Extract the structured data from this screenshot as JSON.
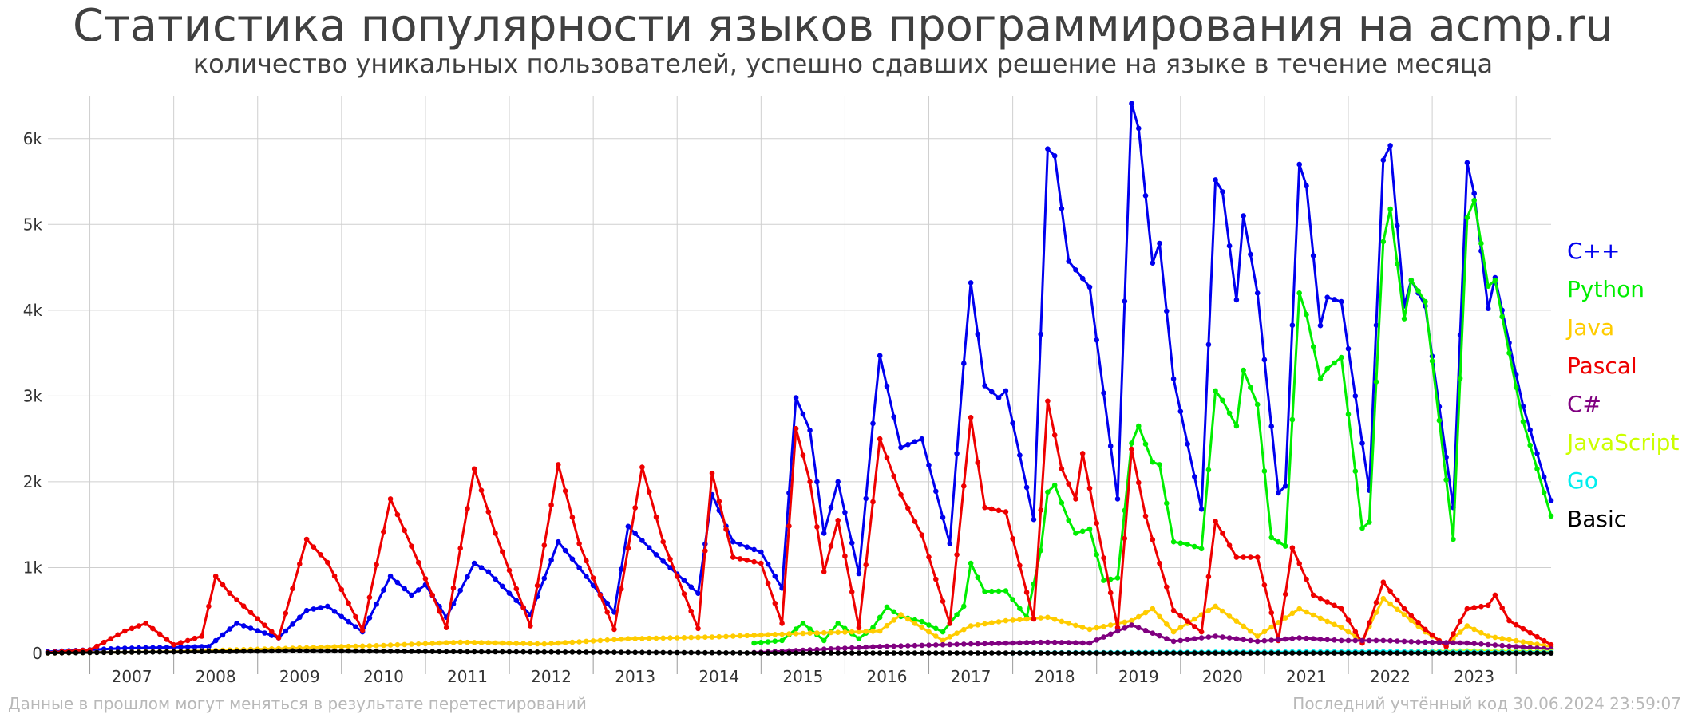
{
  "title": "Статистика популярности языков программирования на acmp.ru",
  "subtitle": "количество уникальных пользователей, успешно сдавших решение на языке в течение месяца",
  "footer_left": "Данные в прошлом могут меняться в результате перетестирований",
  "footer_right": "Последний учтённый код 30.06.2024 23:59:07",
  "chart_data": {
    "type": "line",
    "title": "Статистика популярности языков программирования на acmp.ru",
    "subtitle": "количество уникальных пользователей, успешно сдавших решение на языке в течение месяца",
    "xlabel": "",
    "ylabel": "",
    "x_range": [
      "2006-07",
      "2024-06"
    ],
    "ylim": [
      0,
      6500
    ],
    "y_ticks": [
      0,
      1000,
      2000,
      3000,
      4000,
      5000,
      6000
    ],
    "y_tick_labels": [
      "0",
      "1k",
      "2k",
      "3k",
      "4k",
      "5k",
      "6k"
    ],
    "x_tick_labels": [
      "2007",
      "2008",
      "2009",
      "2010",
      "2011",
      "2012",
      "2013",
      "2014",
      "2015",
      "2016",
      "2017",
      "2018",
      "2019",
      "2020",
      "2021",
      "2022",
      "2023"
    ],
    "grid": true,
    "legend_position": "right",
    "series": [
      {
        "name": "C++",
        "color": "#0000ee",
        "start": "2006-07",
        "anchors": [
          [
            "2006-07",
            20
          ],
          [
            "2007-06",
            60
          ],
          [
            "2008-06",
            80
          ],
          [
            "2008-10",
            350
          ],
          [
            "2009-04",
            180
          ],
          [
            "2009-08",
            500
          ],
          [
            "2009-11",
            550
          ],
          [
            "2010-04",
            250
          ],
          [
            "2010-08",
            900
          ],
          [
            "2010-11",
            680
          ],
          [
            "2011-01",
            800
          ],
          [
            "2011-04",
            420
          ],
          [
            "2011-08",
            1050
          ],
          [
            "2011-10",
            950
          ],
          [
            "2012-04",
            450
          ],
          [
            "2012-08",
            1300
          ],
          [
            "2012-11",
            1000
          ],
          [
            "2013-04",
            480
          ],
          [
            "2013-06",
            1480
          ],
          [
            "2013-10",
            1150
          ],
          [
            "2014-04",
            700
          ],
          [
            "2014-06",
            1850
          ],
          [
            "2014-09",
            1300
          ],
          [
            "2015-01",
            1180
          ],
          [
            "2015-04",
            760
          ],
          [
            "2015-06",
            2980
          ],
          [
            "2015-08",
            2600
          ],
          [
            "2015-10",
            1400
          ],
          [
            "2015-12",
            2000
          ],
          [
            "2016-03",
            930
          ],
          [
            "2016-05",
            2680
          ],
          [
            "2016-06",
            3470
          ],
          [
            "2016-09",
            2400
          ],
          [
            "2016-12",
            2500
          ],
          [
            "2017-04",
            1280
          ],
          [
            "2017-06",
            3380
          ],
          [
            "2017-07",
            4320
          ],
          [
            "2017-09",
            3120
          ],
          [
            "2017-11",
            2980
          ],
          [
            "2017-12",
            3060
          ],
          [
            "2018-04",
            1560
          ],
          [
            "2018-06",
            5880
          ],
          [
            "2018-07",
            5800
          ],
          [
            "2018-09",
            4570
          ],
          [
            "2018-10",
            4470
          ],
          [
            "2018-12",
            4270
          ],
          [
            "2019-04",
            1800
          ],
          [
            "2019-06",
            6410
          ],
          [
            "2019-07",
            6120
          ],
          [
            "2019-09",
            4550
          ],
          [
            "2019-10",
            4780
          ],
          [
            "2019-12",
            3200
          ],
          [
            "2020-04",
            1680
          ],
          [
            "2020-06",
            5520
          ],
          [
            "2020-07",
            5380
          ],
          [
            "2020-09",
            4120
          ],
          [
            "2020-10",
            5100
          ],
          [
            "2020-12",
            4200
          ],
          [
            "2021-03",
            1870
          ],
          [
            "2021-04",
            1950
          ],
          [
            "2021-06",
            5700
          ],
          [
            "2021-07",
            5450
          ],
          [
            "2021-09",
            3820
          ],
          [
            "2021-10",
            4150
          ],
          [
            "2021-12",
            4100
          ],
          [
            "2022-04",
            1900
          ],
          [
            "2022-06",
            5750
          ],
          [
            "2022-07",
            5920
          ],
          [
            "2022-09",
            4050
          ],
          [
            "2022-10",
            4350
          ],
          [
            "2022-12",
            4050
          ],
          [
            "2023-04",
            1700
          ],
          [
            "2023-06",
            5720
          ],
          [
            "2023-07",
            5360
          ],
          [
            "2023-09",
            4020
          ],
          [
            "2023-10",
            4380
          ],
          [
            "2023-12",
            3620
          ],
          [
            "2024-02",
            2880
          ],
          [
            "2024-06",
            1780
          ]
        ]
      },
      {
        "name": "Python",
        "color": "#00ee00",
        "start": "2014-12",
        "anchors": [
          [
            "2014-12",
            120
          ],
          [
            "2015-04",
            150
          ],
          [
            "2015-07",
            350
          ],
          [
            "2015-10",
            150
          ],
          [
            "2015-12",
            350
          ],
          [
            "2016-03",
            170
          ],
          [
            "2016-05",
            300
          ],
          [
            "2016-07",
            540
          ],
          [
            "2016-09",
            430
          ],
          [
            "2016-12",
            370
          ],
          [
            "2017-03",
            250
          ],
          [
            "2017-06",
            550
          ],
          [
            "2017-07",
            1050
          ],
          [
            "2017-09",
            720
          ],
          [
            "2017-12",
            730
          ],
          [
            "2018-03",
            420
          ],
          [
            "2018-05",
            1200
          ],
          [
            "2018-06",
            1880
          ],
          [
            "2018-07",
            1960
          ],
          [
            "2018-09",
            1550
          ],
          [
            "2018-10",
            1400
          ],
          [
            "2018-12",
            1450
          ],
          [
            "2019-02",
            850
          ],
          [
            "2019-04",
            880
          ],
          [
            "2019-06",
            2450
          ],
          [
            "2019-07",
            2650
          ],
          [
            "2019-09",
            2230
          ],
          [
            "2019-10",
            2200
          ],
          [
            "2019-12",
            1300
          ],
          [
            "2020-02",
            1270
          ],
          [
            "2020-04",
            1220
          ],
          [
            "2020-06",
            3060
          ],
          [
            "2020-07",
            2950
          ],
          [
            "2020-09",
            2650
          ],
          [
            "2020-10",
            3300
          ],
          [
            "2020-12",
            2900
          ],
          [
            "2021-02",
            1350
          ],
          [
            "2021-04",
            1250
          ],
          [
            "2021-06",
            4200
          ],
          [
            "2021-07",
            3950
          ],
          [
            "2021-09",
            3200
          ],
          [
            "2021-10",
            3320
          ],
          [
            "2021-12",
            3450
          ],
          [
            "2022-03",
            1460
          ],
          [
            "2022-04",
            1530
          ],
          [
            "2022-06",
            4800
          ],
          [
            "2022-07",
            5180
          ],
          [
            "2022-09",
            3900
          ],
          [
            "2022-10",
            4350
          ],
          [
            "2022-12",
            4100
          ],
          [
            "2023-04",
            1330
          ],
          [
            "2023-06",
            5080
          ],
          [
            "2023-07",
            5280
          ],
          [
            "2023-09",
            4280
          ],
          [
            "2023-10",
            4350
          ],
          [
            "2023-12",
            3500
          ],
          [
            "2024-02",
            2700
          ],
          [
            "2024-06",
            1600
          ]
        ]
      },
      {
        "name": "Java",
        "color": "#ffcc00",
        "start": "2006-07",
        "anchors": [
          [
            "2006-07",
            5
          ],
          [
            "2008-01",
            20
          ],
          [
            "2009-06",
            60
          ],
          [
            "2010-01",
            80
          ],
          [
            "2010-06",
            90
          ],
          [
            "2011-06",
            130
          ],
          [
            "2012-06",
            110
          ],
          [
            "2013-06",
            170
          ],
          [
            "2014-06",
            190
          ],
          [
            "2015-06",
            230
          ],
          [
            "2016-06",
            260
          ],
          [
            "2016-09",
            450
          ],
          [
            "2017-03",
            150
          ],
          [
            "2017-07",
            320
          ],
          [
            "2017-12",
            380
          ],
          [
            "2018-06",
            420
          ],
          [
            "2018-12",
            280
          ],
          [
            "2019-06",
            380
          ],
          [
            "2019-09",
            520
          ],
          [
            "2019-12",
            250
          ],
          [
            "2020-06",
            550
          ],
          [
            "2020-12",
            200
          ],
          [
            "2021-06",
            520
          ],
          [
            "2021-12",
            300
          ],
          [
            "2022-03",
            150
          ],
          [
            "2022-06",
            640
          ],
          [
            "2022-09",
            450
          ],
          [
            "2022-12",
            250
          ],
          [
            "2023-03",
            100
          ],
          [
            "2023-06",
            320
          ],
          [
            "2023-09",
            200
          ],
          [
            "2024-06",
            80
          ]
        ]
      },
      {
        "name": "Pascal",
        "color": "#ee0000",
        "start": "2006-07",
        "anchors": [
          [
            "2006-07",
            10
          ],
          [
            "2007-01",
            40
          ],
          [
            "2007-06",
            260
          ],
          [
            "2007-09",
            350
          ],
          [
            "2008-01",
            100
          ],
          [
            "2008-05",
            200
          ],
          [
            "2008-07",
            900
          ],
          [
            "2008-09",
            700
          ],
          [
            "2009-04",
            180
          ],
          [
            "2009-08",
            1330
          ],
          [
            "2009-11",
            1060
          ],
          [
            "2010-04",
            270
          ],
          [
            "2010-08",
            1800
          ],
          [
            "2010-11",
            1250
          ],
          [
            "2011-04",
            300
          ],
          [
            "2011-08",
            2150
          ],
          [
            "2011-11",
            1400
          ],
          [
            "2012-04",
            320
          ],
          [
            "2012-08",
            2200
          ],
          [
            "2012-11",
            1280
          ],
          [
            "2013-04",
            280
          ],
          [
            "2013-08",
            2170
          ],
          [
            "2013-11",
            1300
          ],
          [
            "2014-04",
            290
          ],
          [
            "2014-06",
            2100
          ],
          [
            "2014-09",
            1120
          ],
          [
            "2015-01",
            1050
          ],
          [
            "2015-04",
            350
          ],
          [
            "2015-06",
            2620
          ],
          [
            "2015-08",
            2000
          ],
          [
            "2015-10",
            950
          ],
          [
            "2015-12",
            1550
          ],
          [
            "2016-03",
            300
          ],
          [
            "2016-06",
            2500
          ],
          [
            "2016-09",
            1850
          ],
          [
            "2016-12",
            1380
          ],
          [
            "2017-04",
            350
          ],
          [
            "2017-07",
            2750
          ],
          [
            "2017-09",
            1700
          ],
          [
            "2017-12",
            1650
          ],
          [
            "2018-04",
            400
          ],
          [
            "2018-06",
            2940
          ],
          [
            "2018-08",
            2150
          ],
          [
            "2018-10",
            1800
          ],
          [
            "2018-11",
            2330
          ],
          [
            "2019-04",
            300
          ],
          [
            "2019-06",
            2380
          ],
          [
            "2019-08",
            1600
          ],
          [
            "2019-12",
            500
          ],
          [
            "2020-04",
            250
          ],
          [
            "2020-06",
            1540
          ],
          [
            "2020-09",
            1120
          ],
          [
            "2020-12",
            1120
          ],
          [
            "2021-03",
            150
          ],
          [
            "2021-05",
            1230
          ],
          [
            "2021-08",
            680
          ],
          [
            "2021-12",
            520
          ],
          [
            "2022-03",
            120
          ],
          [
            "2022-06",
            830
          ],
          [
            "2022-09",
            520
          ],
          [
            "2022-12",
            280
          ],
          [
            "2023-03",
            80
          ],
          [
            "2023-06",
            520
          ],
          [
            "2023-09",
            560
          ],
          [
            "2023-10",
            680
          ],
          [
            "2023-12",
            380
          ],
          [
            "2024-06",
            100
          ]
        ]
      },
      {
        "name": "C#",
        "color": "#800080",
        "start": "2014-12",
        "anchors": [
          [
            "2014-12",
            10
          ],
          [
            "2016-06",
            80
          ],
          [
            "2017-07",
            110
          ],
          [
            "2018-06",
            130
          ],
          [
            "2018-12",
            120
          ],
          [
            "2019-06",
            330
          ],
          [
            "2019-12",
            140
          ],
          [
            "2020-06",
            200
          ],
          [
            "2020-12",
            140
          ],
          [
            "2021-06",
            180
          ],
          [
            "2021-12",
            150
          ],
          [
            "2022-06",
            150
          ],
          [
            "2022-12",
            130
          ],
          [
            "2023-06",
            120
          ],
          [
            "2024-06",
            50
          ]
        ]
      },
      {
        "name": "JavaScript",
        "color": "#ccff00",
        "start": "2022-03",
        "anchors": [
          [
            "2022-03",
            10
          ],
          [
            "2023-06",
            30
          ],
          [
            "2024-06",
            20
          ]
        ]
      },
      {
        "name": "Go",
        "color": "#00eeee",
        "start": "2018-01",
        "anchors": [
          [
            "2018-01",
            5
          ],
          [
            "2020-06",
            15
          ],
          [
            "2022-06",
            20
          ],
          [
            "2024-06",
            10
          ]
        ]
      },
      {
        "name": "Basic",
        "color": "#000000",
        "start": "2006-07",
        "anchors": [
          [
            "2006-07",
            5
          ],
          [
            "2009-06",
            30
          ],
          [
            "2011-06",
            20
          ],
          [
            "2015-01",
            5
          ],
          [
            "2024-06",
            3
          ]
        ]
      }
    ]
  }
}
